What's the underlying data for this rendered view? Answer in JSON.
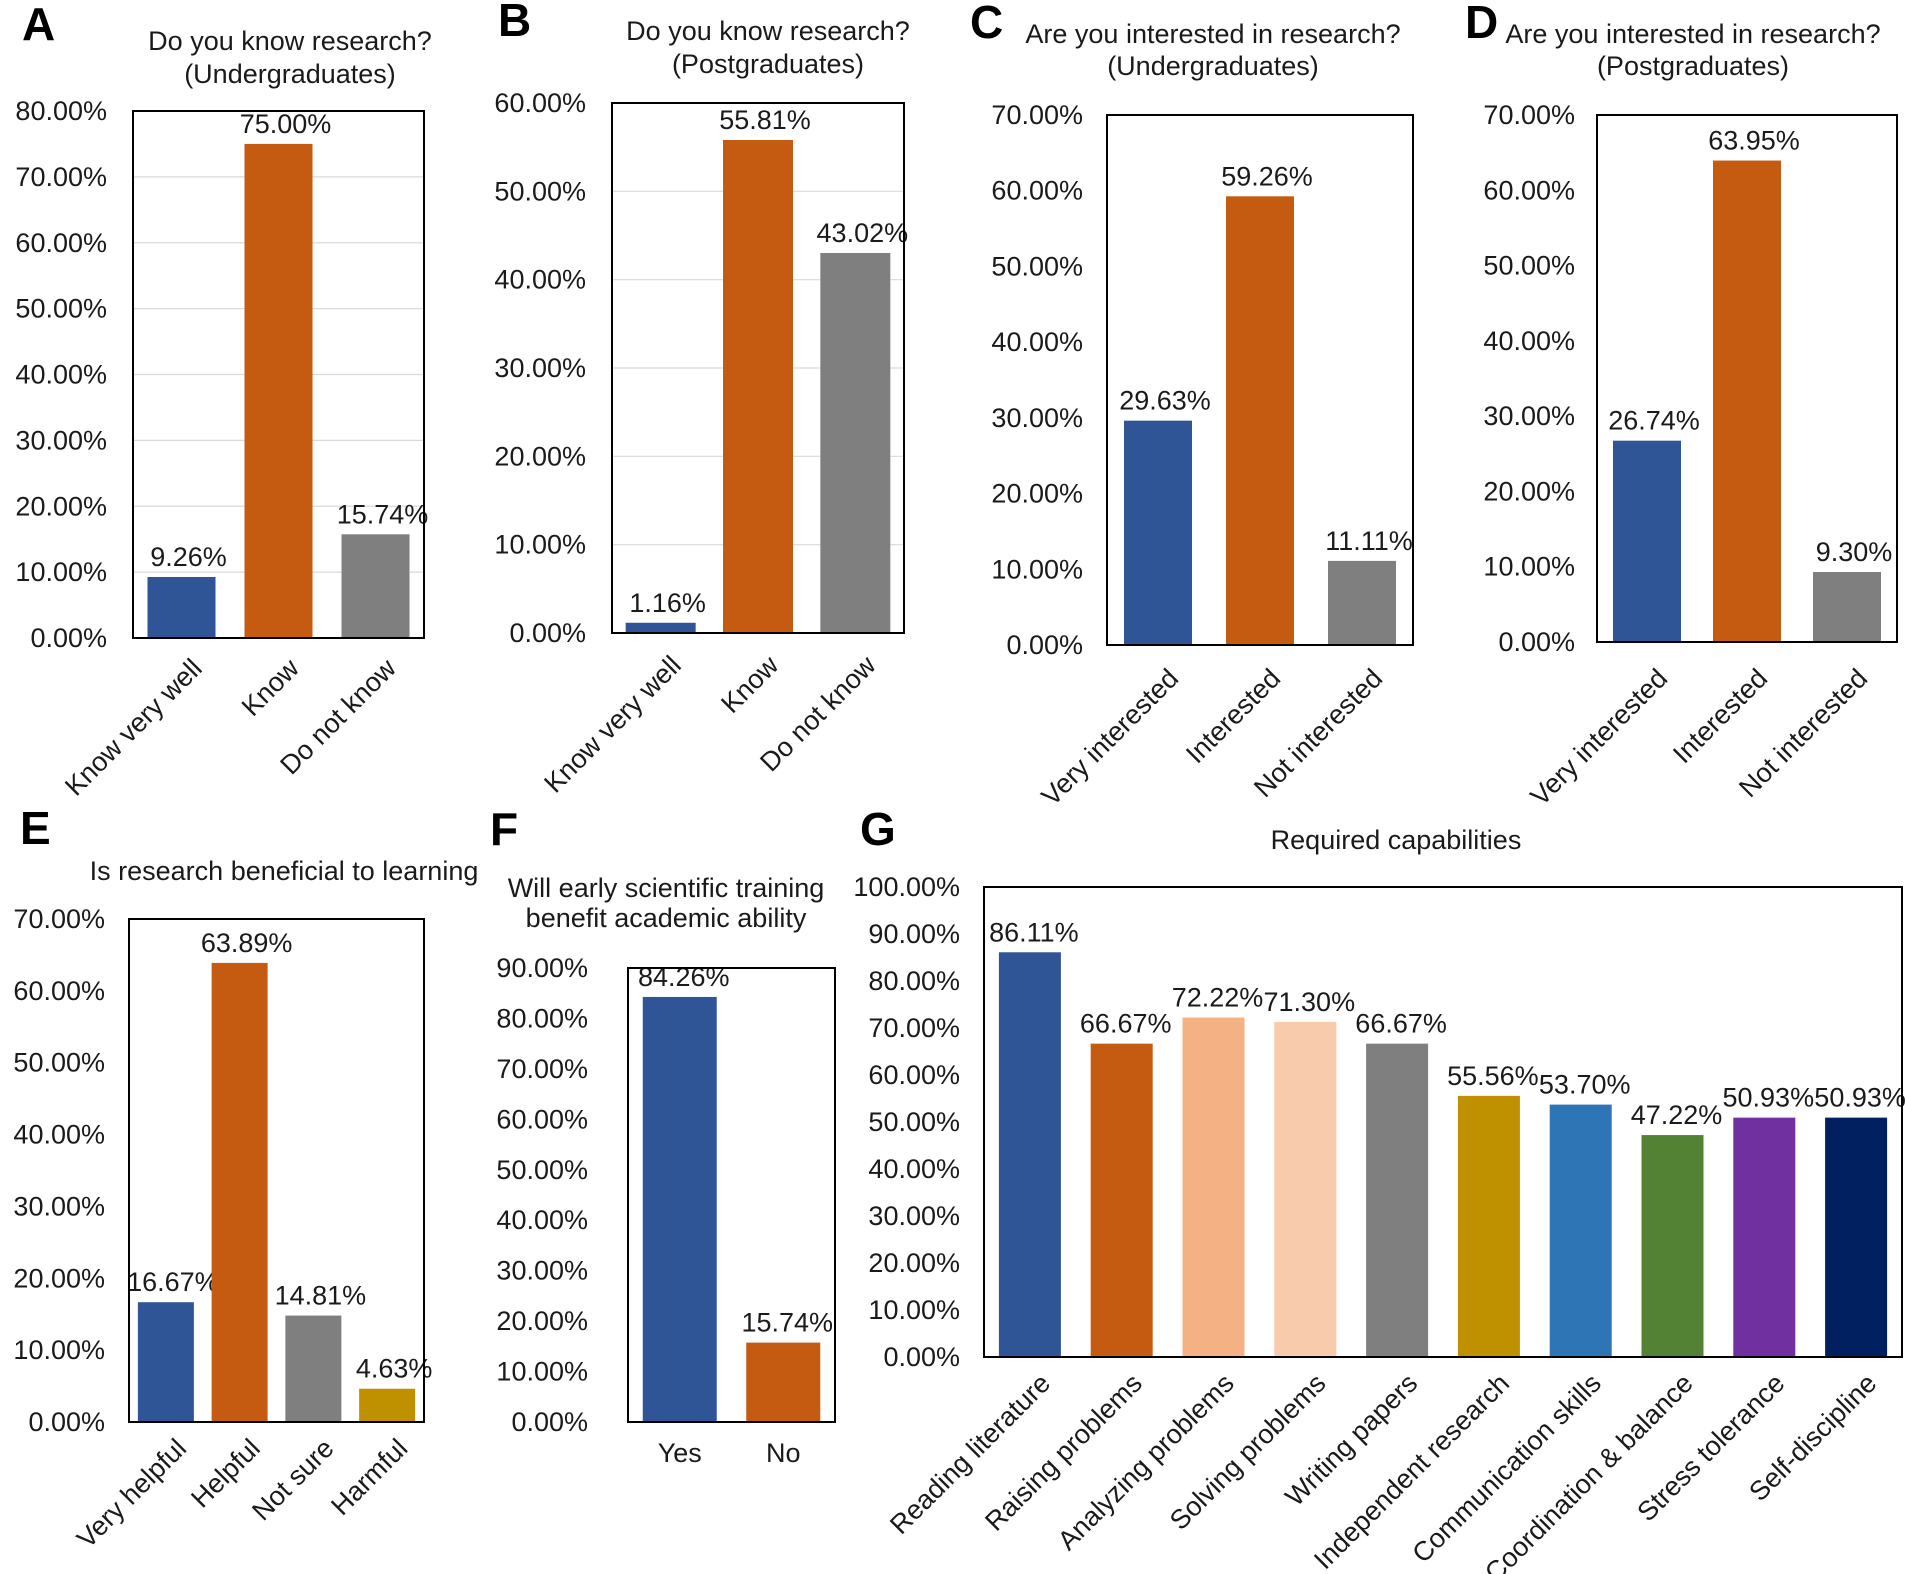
{
  "figure": {
    "panels": [
      "A",
      "B",
      "C",
      "D",
      "E",
      "F",
      "G"
    ]
  },
  "chart_data": [
    {
      "id": "A",
      "type": "bar",
      "title": [
        "Do you know research?",
        "(Undergraduates)"
      ],
      "categories": [
        "Know very well",
        "Know",
        "Do not know"
      ],
      "values": [
        9.26,
        75.0,
        15.74
      ],
      "value_labels": [
        "9.26%",
        "75.00%",
        "15.74%"
      ],
      "colors": [
        "#2f5597",
        "#c55a11",
        "#7f7f7f"
      ],
      "ylim": [
        0,
        80
      ],
      "yticks": [
        0,
        10,
        20,
        30,
        40,
        50,
        60,
        70,
        80
      ],
      "ytick_labels": [
        "0.00%",
        "10.00%",
        "20.00%",
        "30.00%",
        "40.00%",
        "50.00%",
        "60.00%",
        "70.00%",
        "80.00%"
      ],
      "grid": true,
      "xlabel": "",
      "ylabel": ""
    },
    {
      "id": "B",
      "type": "bar",
      "title": [
        "Do you know research?",
        "(Postgraduates)"
      ],
      "categories": [
        "Know very well",
        "Know",
        "Do not know"
      ],
      "values": [
        1.16,
        55.81,
        43.02
      ],
      "value_labels": [
        "1.16%",
        "55.81%",
        "43.02%"
      ],
      "colors": [
        "#2f5597",
        "#c55a11",
        "#7f7f7f"
      ],
      "ylim": [
        0,
        60
      ],
      "yticks": [
        0,
        10,
        20,
        30,
        40,
        50,
        60
      ],
      "ytick_labels": [
        "0.00%",
        "10.00%",
        "20.00%",
        "30.00%",
        "40.00%",
        "50.00%",
        "60.00%"
      ],
      "grid": true,
      "xlabel": "",
      "ylabel": ""
    },
    {
      "id": "C",
      "type": "bar",
      "title": [
        "Are you interested in research?",
        "(Undergraduates)"
      ],
      "categories": [
        "Very interested",
        "Interested",
        "Not interested"
      ],
      "values": [
        29.63,
        59.26,
        11.11
      ],
      "value_labels": [
        "29.63%",
        "59.26%",
        "11.11%"
      ],
      "colors": [
        "#2f5597",
        "#c55a11",
        "#7f7f7f"
      ],
      "ylim": [
        0,
        70
      ],
      "yticks": [
        0,
        10,
        20,
        30,
        40,
        50,
        60,
        70
      ],
      "ytick_labels": [
        "0.00%",
        "10.00%",
        "20.00%",
        "30.00%",
        "40.00%",
        "50.00%",
        "60.00%",
        "70.00%"
      ],
      "grid": false,
      "xlabel": "",
      "ylabel": ""
    },
    {
      "id": "D",
      "type": "bar",
      "title": [
        "Are you interested in research?",
        "(Postgraduates)"
      ],
      "categories": [
        "Very interested",
        "Interested",
        "Not interested"
      ],
      "values": [
        26.74,
        63.95,
        9.3
      ],
      "value_labels": [
        "26.74%",
        "63.95%",
        "9.30%"
      ],
      "colors": [
        "#2f5597",
        "#c55a11",
        "#7f7f7f"
      ],
      "ylim": [
        0,
        70
      ],
      "yticks": [
        0,
        10,
        20,
        30,
        40,
        50,
        60,
        70
      ],
      "ytick_labels": [
        "0.00%",
        "10.00%",
        "20.00%",
        "30.00%",
        "40.00%",
        "50.00%",
        "60.00%",
        "70.00%"
      ],
      "grid": false,
      "xlabel": "",
      "ylabel": ""
    },
    {
      "id": "E",
      "type": "bar",
      "title": [
        "Is research beneficial to learning"
      ],
      "categories": [
        "Very helpful",
        "Helpful",
        "Not sure",
        "Harmful"
      ],
      "values": [
        16.67,
        63.89,
        14.81,
        4.63
      ],
      "value_labels": [
        "16.67%",
        "63.89%",
        "14.81%",
        "4.63%"
      ],
      "colors": [
        "#2f5597",
        "#c55a11",
        "#7f7f7f",
        "#bf9000"
      ],
      "ylim": [
        0,
        70
      ],
      "yticks": [
        0,
        10,
        20,
        30,
        40,
        50,
        60,
        70
      ],
      "ytick_labels": [
        "0.00%",
        "10.00%",
        "20.00%",
        "30.00%",
        "40.00%",
        "50.00%",
        "60.00%",
        "70.00%"
      ],
      "grid": false,
      "xlabel": "",
      "ylabel": ""
    },
    {
      "id": "F",
      "type": "bar",
      "title": [
        "Will early scientific training",
        "benefit academic ability"
      ],
      "categories": [
        "Yes",
        "No"
      ],
      "values": [
        84.26,
        15.74
      ],
      "value_labels": [
        "84.26%",
        "15.74%"
      ],
      "colors": [
        "#2f5597",
        "#c55a11"
      ],
      "ylim": [
        0,
        90
      ],
      "yticks": [
        0,
        10,
        20,
        30,
        40,
        50,
        60,
        70,
        80,
        90
      ],
      "ytick_labels": [
        "0.00%",
        "10.00%",
        "20.00%",
        "30.00%",
        "40.00%",
        "50.00%",
        "60.00%",
        "70.00%",
        "80.00%",
        "90.00%"
      ],
      "grid": false,
      "xlabel": "",
      "ylabel": ""
    },
    {
      "id": "G",
      "type": "bar",
      "title": [
        "Required capabilities"
      ],
      "categories": [
        "Reading literature",
        "Raising problems",
        "Analyzing problems",
        "Solving problems",
        "Writing papers",
        "Independent research",
        "Communication skills",
        "Coordination & balance",
        "Stress tolerance",
        "Self-discipline"
      ],
      "values": [
        86.11,
        66.67,
        72.22,
        71.3,
        66.67,
        55.56,
        53.7,
        47.22,
        50.93,
        50.93
      ],
      "value_labels": [
        "86.11%",
        "66.67%",
        "72.22%",
        "71.30%",
        "66.67%",
        "55.56%",
        "53.70%",
        "47.22%",
        "50.93%",
        "50.93%"
      ],
      "colors": [
        "#2f5597",
        "#c55a11",
        "#f4b183",
        "#f8cbad",
        "#7f7f7f",
        "#bf9000",
        "#2e75b6",
        "#548235",
        "#7030a0",
        "#002060"
      ],
      "ylim": [
        0,
        100
      ],
      "yticks": [
        0,
        10,
        20,
        30,
        40,
        50,
        60,
        70,
        80,
        90,
        100
      ],
      "ytick_labels": [
        "0.00%",
        "10.00%",
        "20.00%",
        "30.00%",
        "40.00%",
        "50.00%",
        "60.00%",
        "70.00%",
        "80.00%",
        "90.00%",
        "100.00%"
      ],
      "grid": false,
      "xlabel": "",
      "ylabel": ""
    }
  ]
}
